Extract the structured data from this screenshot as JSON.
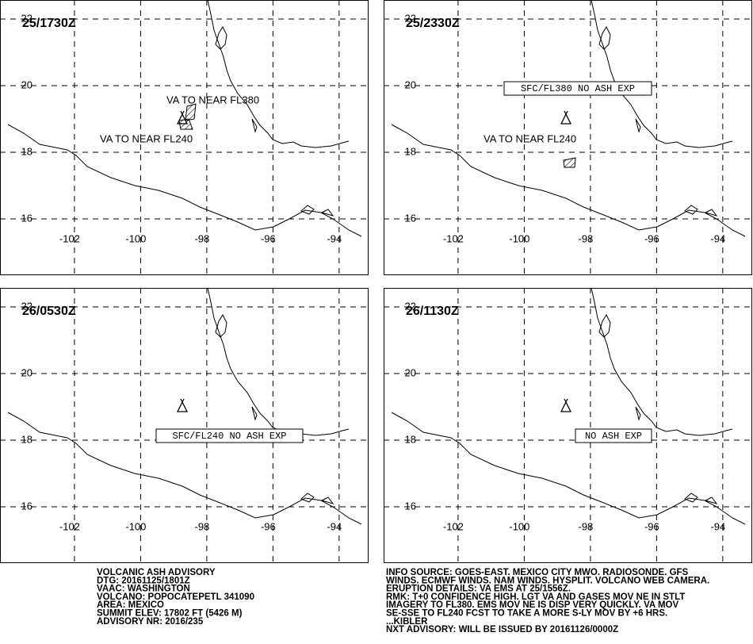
{
  "map": {
    "xlim": [
      -104.25,
      -93.11
    ],
    "ylim": [
      14.31,
      22.57
    ],
    "xticks": [
      -102,
      -100,
      -98,
      -96,
      -94
    ],
    "yticks": [
      16,
      18,
      20,
      22
    ]
  },
  "panels": [
    {
      "time": "25/1730Z",
      "labels": [
        "VA TO NEAR FL380",
        "VA TO NEAR FL240"
      ]
    },
    {
      "time": "25/2330Z",
      "labels": [
        "SFC/FL380 NO ASH EXP",
        "VA TO NEAR FL240"
      ]
    },
    {
      "time": "26/0530Z",
      "labels": [
        "SFC/FL240 NO ASH EXP"
      ]
    },
    {
      "time": "26/1130Z",
      "labels": [
        "NO ASH EXP"
      ]
    }
  ],
  "advisory": {
    "left": [
      "VOLCANIC ASH ADVISORY",
      "DTG: 20161125/1801Z",
      "VAAC: WASHINGTON",
      "VOLCANO: POPOCATEPETL 341090",
      "AREA: MEXICO",
      "SUMMIT ELEV: 17802 FT (5426 M)",
      "ADVISORY NR: 2016/235"
    ],
    "right": [
      "INFO SOURCE: GOES-EAST. MEXICO CITY MWO. RADIOSONDE. GFS",
      "WINDS. ECMWF WINDS. NAM WINDS. HYSPLIT. VOLCANO WEB CAMERA.",
      "ERUPTION DETAILS: VA EMS AT 25/1556Z.",
      "RMK: T+0 CONFIDENCE HIGH. LGT VA AND GASES MOV NE IN STLT",
      "IMAGERY TO FL380. EMS MOV NE IS DISP VERY QUICKLY. VA MOV",
      "SE-SSE TO FL240 FCST TO TAKE A MORE S-LY MOV BY +6 HRS.",
      "...KIBLER",
      "NXT ADVISORY: WILL BE ISSUED BY 20161126/0000Z"
    ]
  }
}
